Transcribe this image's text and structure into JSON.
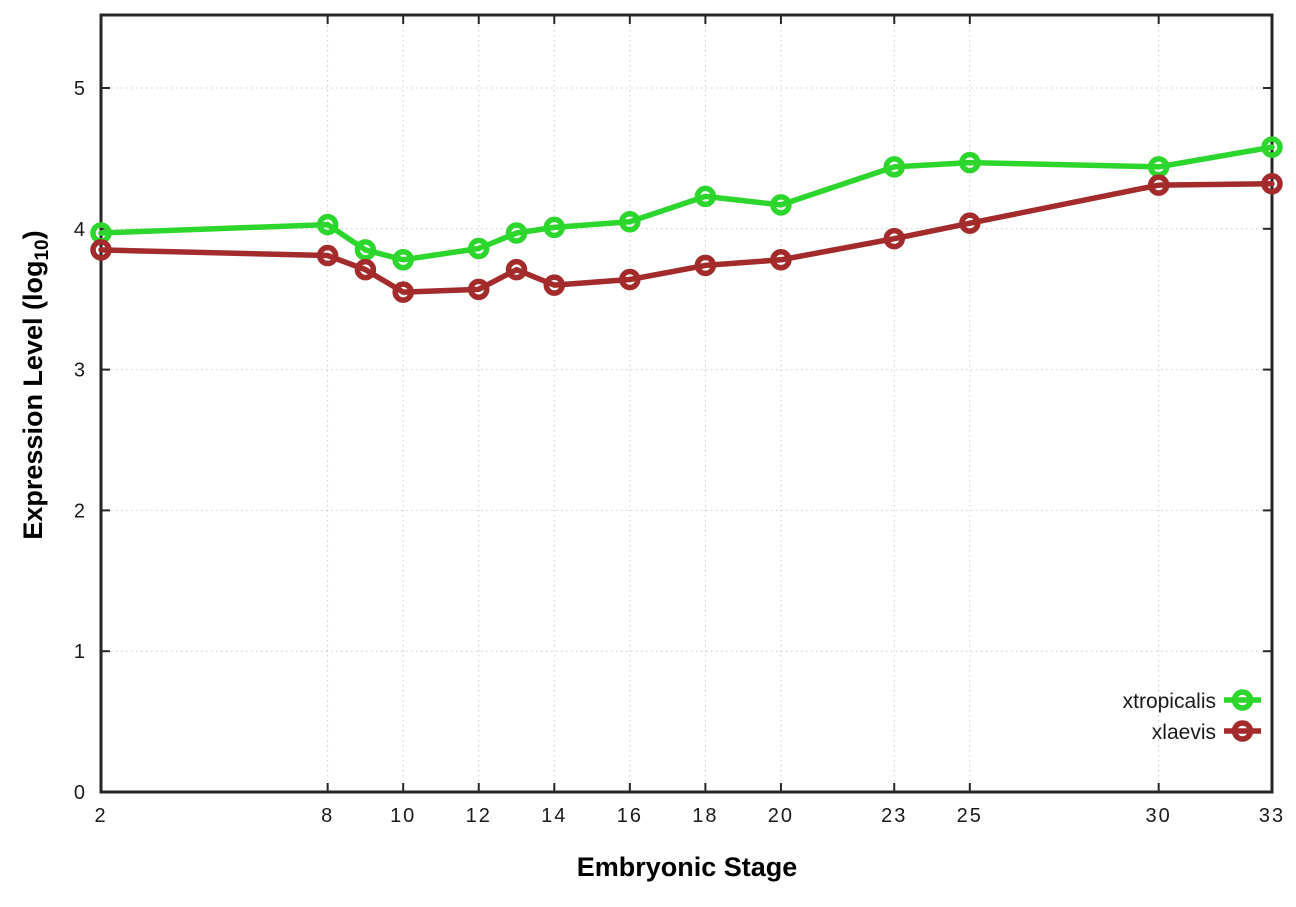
{
  "chart_data": {
    "type": "line",
    "title": "",
    "xlabel": "Embryonic Stage",
    "ylabel": "Expression Level (log10)",
    "ylabel_parts": {
      "prefix": "Expression Level (log",
      "sub": "10",
      "suffix": ")"
    },
    "x": [
      2,
      8,
      9,
      10,
      12,
      13,
      14,
      16,
      18,
      20,
      23,
      25,
      30,
      33
    ],
    "x_ticks": [
      2,
      8,
      10,
      12,
      14,
      16,
      18,
      20,
      23,
      25,
      30,
      33
    ],
    "y_ticks": [
      0,
      1,
      2,
      3,
      4,
      5
    ],
    "xlim": [
      2,
      33
    ],
    "ylim": [
      0,
      5.5
    ],
    "grid": true,
    "legend_position": "inside-bottom-right",
    "series": [
      {
        "name": "xtropicalis",
        "color": "#2dd62d",
        "marker": "open-circle",
        "values": [
          3.97,
          4.03,
          3.85,
          3.78,
          3.86,
          3.97,
          4.01,
          4.05,
          4.23,
          4.17,
          4.44,
          4.47,
          4.44,
          4.58
        ]
      },
      {
        "name": "xlaevis",
        "color": "#a32b2b",
        "marker": "open-circle",
        "values": [
          3.85,
          3.81,
          3.71,
          3.55,
          3.57,
          3.71,
          3.6,
          3.64,
          3.74,
          3.78,
          3.93,
          4.04,
          4.31,
          4.32
        ]
      }
    ]
  },
  "colors": {
    "background": "#ffffff",
    "axis": "#262626",
    "grid": "#c9c9c9",
    "tick_text": "#1a1a1a",
    "legend_text": "#1a1a1a"
  }
}
